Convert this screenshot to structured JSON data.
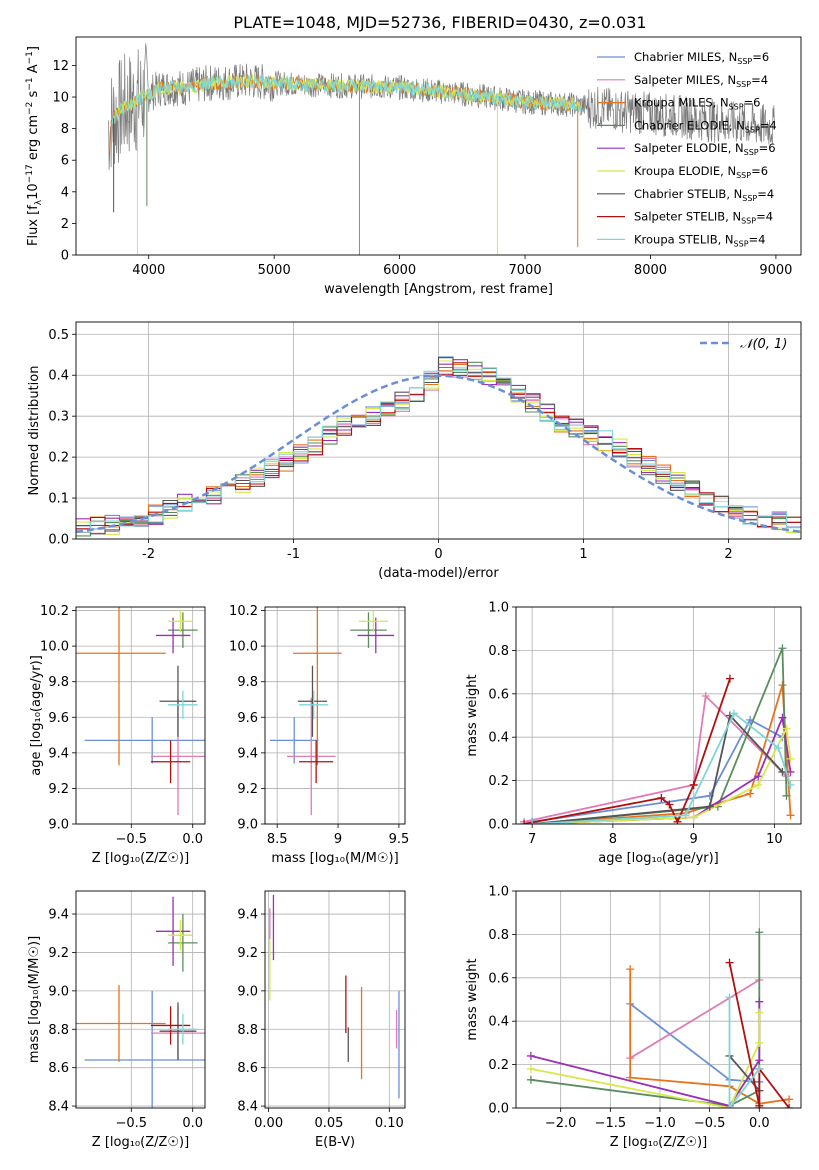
{
  "figure_title": "PLATE=1048, MJD=52736, FIBERID=0430, z=0.031",
  "colors": {
    "c0": "#6a8fd6",
    "c1": "#e07bb4",
    "c2": "#e8731c",
    "c3": "#5b8c5e",
    "c4": "#9b30b5",
    "c5": "#d6e84a",
    "c6": "#555555",
    "c7": "#b01010",
    "c8": "#7fd6d8",
    "grid": "#b0b0b0"
  },
  "chart_data": [
    {
      "type": "line",
      "id": "spectrum",
      "title": "",
      "xlabel": "wavelength [Angstrom, rest frame]",
      "ylabel_text": "Flux [f",
      "ylabel_sub": "λ",
      "ylabel_text2": "10",
      "ylabel_sup": "−17",
      "ylabel_text3": " erg cm",
      "ylabel_sup2": "−2",
      "ylabel_text4": " s",
      "ylabel_sup3": "−1",
      "ylabel_text5": " A",
      "ylabel_sup4": "−1",
      "ylabel_text6": "]",
      "xlim": [
        3420,
        9200
      ],
      "ylim": [
        0,
        13.8
      ],
      "xticks": [
        4000,
        5000,
        6000,
        7000,
        8000,
        9000
      ],
      "yticks": [
        0,
        2,
        4,
        6,
        8,
        10,
        12
      ],
      "legend_position": "top-right",
      "legend": [
        {
          "label": "Chabrier MILES, N",
          "sub": "SSP",
          "tail": "=6",
          "color": "#6a8fd6"
        },
        {
          "label": "Salpeter MILES, N",
          "sub": "SSP",
          "tail": "=4",
          "color": "#e07bb4"
        },
        {
          "label": "Kroupa MILES, N",
          "sub": "SSP",
          "tail": "=6",
          "color": "#e8731c"
        },
        {
          "label": "Chabrier ELODIE, N",
          "sub": "SSP",
          "tail": "=4",
          "color": "#5b8c5e"
        },
        {
          "label": "Salpeter ELODIE, N",
          "sub": "SSP",
          "tail": "=6",
          "color": "#9b30b5"
        },
        {
          "label": "Kroupa ELODIE, N",
          "sub": "SSP",
          "tail": "=6",
          "color": "#d6e84a"
        },
        {
          "label": "Chabrier STELIB, N",
          "sub": "SSP",
          "tail": "=4",
          "color": "#555555"
        },
        {
          "label": "Salpeter STELIB, N",
          "sub": "SSP",
          "tail": "=4",
          "color": "#b01010"
        },
        {
          "label": "Kroupa STELIB, N",
          "sub": "SSP",
          "tail": "=4",
          "color": "#7fd6d8"
        }
      ],
      "continuum": [
        [
          3700,
          8.5
        ],
        [
          3800,
          9.3
        ],
        [
          3950,
          10.0
        ],
        [
          4100,
          10.6
        ],
        [
          4300,
          10.6
        ],
        [
          4500,
          10.9
        ],
        [
          4800,
          11.0
        ],
        [
          5200,
          10.8
        ],
        [
          5600,
          10.7
        ],
        [
          6000,
          10.6
        ],
        [
          6500,
          10.2
        ],
        [
          7000,
          9.7
        ],
        [
          7400,
          9.5
        ],
        [
          7800,
          9.1
        ],
        [
          8200,
          8.8
        ],
        [
          8600,
          8.4
        ],
        [
          9000,
          8.1
        ]
      ],
      "model_range": [
        3700,
        7450
      ],
      "data_range": [
        3680,
        8990
      ],
      "dips": [
        {
          "x": 3700,
          "y": 6.5,
          "color": "#e8731c"
        },
        {
          "x": 3720,
          "y": 2.7,
          "color": "#555555"
        },
        {
          "x": 3910,
          "y": 0.0,
          "color": "#d6e84a"
        },
        {
          "x": 3985,
          "y": 3.1,
          "color": "#5b8c5e"
        },
        {
          "x": 5680,
          "y": 0.0,
          "color": "#e8731c"
        },
        {
          "x": 6780,
          "y": 0.0,
          "color": "#d6e84a"
        },
        {
          "x": 7420,
          "y": 0.5,
          "color": "#e8731c"
        }
      ]
    },
    {
      "type": "step",
      "id": "residual_hist",
      "title": "",
      "xlabel": "(data-model)/error",
      "ylabel": "Normed distribution",
      "xlim": [
        -2.5,
        2.5
      ],
      "ylim": [
        0,
        0.53
      ],
      "xticks": [
        -2,
        -1,
        0,
        1,
        2
      ],
      "yticks": [
        0.0,
        0.1,
        0.2,
        0.3,
        0.4,
        0.5
      ],
      "ytick_labels": [
        "0.0",
        "0.1",
        "0.2",
        "0.3",
        "0.4",
        "0.5"
      ],
      "legend_position": "top-right",
      "legend_label": "𝒩(0, 1)",
      "gaussian": {
        "mean": 0,
        "sigma": 1,
        "color": "#6a8fd6"
      },
      "bin_edges_start": -2.5,
      "bin_width": 0.1,
      "base_profile": [
        0.03,
        0.032,
        0.035,
        0.04,
        0.05,
        0.06,
        0.075,
        0.085,
        0.095,
        0.105,
        0.12,
        0.135,
        0.15,
        0.17,
        0.19,
        0.21,
        0.23,
        0.255,
        0.275,
        0.29,
        0.3,
        0.31,
        0.335,
        0.355,
        0.385,
        0.42,
        0.415,
        0.41,
        0.395,
        0.38,
        0.355,
        0.335,
        0.305,
        0.285,
        0.27,
        0.255,
        0.24,
        0.22,
        0.2,
        0.18,
        0.16,
        0.14,
        0.12,
        0.1,
        0.085,
        0.075,
        0.06,
        0.05,
        0.045,
        0.04
      ],
      "series_offsets": [
        {
          "name": "",
          "color": "#6a8fd6",
          "seed": 1
        },
        {
          "name": "",
          "color": "#e07bb4",
          "seed": 2
        },
        {
          "name": "",
          "color": "#e8731c",
          "seed": 3
        },
        {
          "name": "",
          "color": "#5b8c5e",
          "seed": 4
        },
        {
          "name": "",
          "color": "#9b30b5",
          "seed": 5
        },
        {
          "name": "",
          "color": "#d6e84a",
          "seed": 6
        },
        {
          "name": "",
          "color": "#555555",
          "seed": 7
        },
        {
          "name": "",
          "color": "#b01010",
          "seed": 8
        },
        {
          "name": "",
          "color": "#7fd6d8",
          "seed": 9
        }
      ]
    },
    {
      "type": "scatter",
      "id": "age_vs_Z",
      "xlabel": "Z [log₁₀(Z/Z☉)]",
      "ylabel": "age  [log₁₀(age/yr)]",
      "xlim": [
        -0.95,
        0.1
      ],
      "ylim": [
        9.0,
        10.22
      ],
      "xticks": [
        -0.5,
        0.0
      ],
      "xtick_labels": [
        "−0.5",
        "0.0"
      ],
      "yticks": [
        9.0,
        9.2,
        9.4,
        9.6,
        9.8,
        10.0,
        10.2
      ],
      "points": [
        {
          "x": -0.33,
          "y": 9.47,
          "xerr": 0.55,
          "yerr": 0.13,
          "color": "#6a8fd6"
        },
        {
          "x": -0.12,
          "y": 9.38,
          "xerr": 0.22,
          "yerr": 0.33,
          "color": "#e07bb4"
        },
        {
          "x": -0.6,
          "y": 9.96,
          "xerr": 0.38,
          "yerr": 0.63,
          "color": "#e8731c"
        },
        {
          "x": -0.08,
          "y": 10.09,
          "xerr": 0.12,
          "yerr": 0.1,
          "color": "#5b8c5e"
        },
        {
          "x": -0.16,
          "y": 10.06,
          "xerr": 0.14,
          "yerr": 0.1,
          "color": "#9b30b5"
        },
        {
          "x": -0.1,
          "y": 10.14,
          "xerr": 0.1,
          "yerr": 0.06,
          "color": "#d6e84a"
        },
        {
          "x": -0.12,
          "y": 9.69,
          "xerr": 0.15,
          "yerr": 0.2,
          "color": "#555555"
        },
        {
          "x": -0.18,
          "y": 9.35,
          "xerr": 0.16,
          "yerr": 0.12,
          "color": "#b01010"
        },
        {
          "x": -0.08,
          "y": 9.67,
          "xerr": 0.12,
          "yerr": 0.08,
          "color": "#7fd6d8"
        }
      ]
    },
    {
      "type": "scatter",
      "id": "age_vs_mass",
      "xlabel": "mass [log₁₀(M/M☉)]",
      "ylabel": "",
      "xlim": [
        8.4,
        9.55
      ],
      "ylim": [
        9.0,
        10.22
      ],
      "xticks": [
        8.5,
        9.0,
        9.5
      ],
      "yticks": [
        9.0,
        9.2,
        9.4,
        9.6,
        9.8,
        10.0,
        10.2
      ],
      "points": [
        {
          "x": 8.64,
          "y": 9.47,
          "xerr": 0.2,
          "yerr": 0.13,
          "color": "#6a8fd6"
        },
        {
          "x": 8.78,
          "y": 9.38,
          "xerr": 0.2,
          "yerr": 0.33,
          "color": "#e07bb4"
        },
        {
          "x": 8.83,
          "y": 9.96,
          "xerr": 0.2,
          "yerr": 0.63,
          "color": "#e8731c"
        },
        {
          "x": 9.25,
          "y": 10.09,
          "xerr": 0.15,
          "yerr": 0.1,
          "color": "#5b8c5e"
        },
        {
          "x": 9.31,
          "y": 10.06,
          "xerr": 0.15,
          "yerr": 0.1,
          "color": "#9b30b5"
        },
        {
          "x": 9.29,
          "y": 10.14,
          "xerr": 0.12,
          "yerr": 0.06,
          "color": "#d6e84a"
        },
        {
          "x": 8.79,
          "y": 9.69,
          "xerr": 0.12,
          "yerr": 0.2,
          "color": "#555555"
        },
        {
          "x": 8.82,
          "y": 9.35,
          "xerr": 0.14,
          "yerr": 0.12,
          "color": "#b01010"
        },
        {
          "x": 8.8,
          "y": 9.67,
          "xerr": 0.12,
          "yerr": 0.08,
          "color": "#7fd6d8"
        }
      ]
    },
    {
      "type": "line",
      "id": "massweight_vs_age",
      "xlabel": "age  [log₁₀(age/yr)]",
      "ylabel": "mass weight",
      "xlim": [
        6.8,
        10.33
      ],
      "ylim": [
        0.0,
        1.0
      ],
      "xticks": [
        7,
        8,
        9,
        10
      ],
      "yticks": [
        0.0,
        0.2,
        0.4,
        0.6,
        0.8,
        1.0
      ],
      "series": [
        {
          "name": "",
          "color": "#6a8fd6",
          "x": [
            7.0,
            9.2,
            9.7,
            10.1
          ],
          "y": [
            0.01,
            0.13,
            0.48,
            0.4
          ]
        },
        {
          "name": "",
          "color": "#e07bb4",
          "x": [
            6.9,
            9.0,
            9.15,
            10.15
          ],
          "y": [
            0.01,
            0.18,
            0.59,
            0.22
          ]
        },
        {
          "name": "",
          "color": "#e8731c",
          "x": [
            7.0,
            8.9,
            9.7,
            10.1,
            10.2
          ],
          "y": [
            0.0,
            0.05,
            0.14,
            0.64,
            0.04
          ]
        },
        {
          "name": "",
          "color": "#5b8c5e",
          "x": [
            7.0,
            9.3,
            10.1,
            10.15
          ],
          "y": [
            0.0,
            0.08,
            0.81,
            0.13
          ]
        },
        {
          "name": "",
          "color": "#9b30b5",
          "x": [
            7.0,
            9.0,
            9.8,
            10.1,
            10.2
          ],
          "y": [
            0.0,
            0.03,
            0.22,
            0.49,
            0.24
          ]
        },
        {
          "name": "",
          "color": "#d6e84a",
          "x": [
            7.0,
            9.0,
            9.8,
            10.15,
            10.2
          ],
          "y": [
            0.0,
            0.03,
            0.18,
            0.44,
            0.3
          ]
        },
        {
          "name": "",
          "color": "#555555",
          "x": [
            7.0,
            9.2,
            9.45,
            10.1
          ],
          "y": [
            0.0,
            0.08,
            0.5,
            0.24
          ]
        },
        {
          "name": "",
          "color": "#b01010",
          "x": [
            6.9,
            8.6,
            8.7,
            8.8,
            9.0,
            9.45
          ],
          "y": [
            0.0,
            0.12,
            0.09,
            0.01,
            0.18,
            0.67
          ]
        },
        {
          "name": "",
          "color": "#7fd6d8",
          "x": [
            7.0,
            8.9,
            9.5,
            10.05,
            10.2
          ],
          "y": [
            0.0,
            0.04,
            0.51,
            0.35,
            0.18
          ]
        }
      ]
    },
    {
      "type": "scatter",
      "id": "mass_vs_Z",
      "xlabel": "Z [log₁₀(Z/Z☉)]",
      "ylabel": "mass [log₁₀(M/M☉)]",
      "xlim": [
        -0.95,
        0.1
      ],
      "ylim": [
        8.39,
        9.52
      ],
      "xticks": [
        -0.5,
        0.0
      ],
      "xtick_labels": [
        "−0.5",
        "0.0"
      ],
      "yticks": [
        8.4,
        8.6,
        8.8,
        9.0,
        9.2,
        9.4
      ],
      "points": [
        {
          "x": -0.33,
          "y": 8.64,
          "xerr": 0.55,
          "yerr": 0.36,
          "color": "#6a8fd6"
        },
        {
          "x": -0.12,
          "y": 8.78,
          "xerr": 0.22,
          "yerr": 0.14,
          "color": "#e07bb4"
        },
        {
          "x": -0.6,
          "y": 8.83,
          "xerr": 0.38,
          "yerr": 0.2,
          "color": "#e8731c"
        },
        {
          "x": -0.08,
          "y": 9.25,
          "xerr": 0.12,
          "yerr": 0.15,
          "color": "#5b8c5e"
        },
        {
          "x": -0.16,
          "y": 9.31,
          "xerr": 0.14,
          "yerr": 0.18,
          "color": "#9b30b5"
        },
        {
          "x": -0.1,
          "y": 9.29,
          "xerr": 0.1,
          "yerr": 0.08,
          "color": "#d6e84a"
        },
        {
          "x": -0.12,
          "y": 8.79,
          "xerr": 0.15,
          "yerr": 0.15,
          "color": "#555555"
        },
        {
          "x": -0.18,
          "y": 8.82,
          "xerr": 0.16,
          "yerr": 0.1,
          "color": "#b01010"
        },
        {
          "x": -0.08,
          "y": 8.8,
          "xerr": 0.12,
          "yerr": 0.08,
          "color": "#7fd6d8"
        }
      ]
    },
    {
      "type": "scatter",
      "id": "mass_vs_ebv",
      "xlabel": "E(B-V)",
      "ylabel": "",
      "xlim": [
        -0.003,
        0.113
      ],
      "ylim": [
        8.39,
        9.52
      ],
      "xticks": [
        0.0,
        0.05,
        0.1
      ],
      "xtick_labels": [
        "0.00",
        "0.05",
        "0.10"
      ],
      "yticks": [
        8.4,
        8.6,
        8.8,
        9.0,
        9.2,
        9.4
      ],
      "points": [
        {
          "x": 0.108,
          "y": 8.72,
          "xerr": 0,
          "yerr": 0.28,
          "color": "#6a8fd6"
        },
        {
          "x": 0.077,
          "y": 8.78,
          "xerr": 0,
          "yerr": 0.24,
          "color": "#e8731c"
        },
        {
          "x": 0.066,
          "y": 8.72,
          "xerr": 0,
          "yerr": 0.09,
          "color": "#555555"
        },
        {
          "x": 0.064,
          "y": 8.93,
          "xerr": 0,
          "yerr": 0.15,
          "color": "#b01010"
        },
        {
          "x": 0.001,
          "y": 9.15,
          "xerr": 0,
          "yerr": 0.2,
          "color": "#d6e84a"
        },
        {
          "x": 0.004,
          "y": 9.33,
          "xerr": 0,
          "yerr": 0.17,
          "color": "#9b30b5"
        },
        {
          "x": 0.001,
          "y": 9.35,
          "xerr": 0,
          "yerr": 0.08,
          "color": "#e07bb4"
        },
        {
          "x": 0.106,
          "y": 8.8,
          "xerr": 0,
          "yerr": 0.1,
          "color": "#e07bb4"
        }
      ]
    },
    {
      "type": "line",
      "id": "massweight_vs_Z",
      "xlabel": "Z [log₁₀(Z/Z☉)]",
      "ylabel": "mass weight",
      "xlim": [
        -2.45,
        0.42
      ],
      "ylim": [
        0.0,
        1.0
      ],
      "xticks": [
        -2.0,
        -1.5,
        -1.0,
        -0.5,
        0.0
      ],
      "xtick_labels": [
        "−2.0",
        "−1.5",
        "−1.0",
        "−0.5",
        "0.0"
      ],
      "yticks": [
        0.0,
        0.2,
        0.4,
        0.6,
        0.8,
        1.0
      ],
      "series": [
        {
          "name": "",
          "color": "#6a8fd6",
          "x": [
            -1.3,
            -0.3,
            0.0,
            0.0
          ],
          "y": [
            0.48,
            0.13,
            0.12,
            0.0
          ]
        },
        {
          "name": "",
          "color": "#e07bb4",
          "x": [
            -1.3,
            0.0
          ],
          "y": [
            0.23,
            0.59
          ]
        },
        {
          "name": "",
          "color": "#e8731c",
          "x": [
            -1.3,
            -1.3,
            -0.3,
            0.0,
            0.3
          ],
          "y": [
            0.64,
            0.14,
            0.1,
            0.02,
            0.04
          ]
        },
        {
          "name": "",
          "color": "#5b8c5e",
          "x": [
            -2.3,
            -0.3,
            0.0,
            0.0
          ],
          "y": [
            0.13,
            0.01,
            0.08,
            0.81
          ]
        },
        {
          "name": "",
          "color": "#9b30b5",
          "x": [
            -2.3,
            -0.3,
            0.0,
            0.0
          ],
          "y": [
            0.24,
            0.01,
            0.22,
            0.49
          ]
        },
        {
          "name": "",
          "color": "#d6e84a",
          "x": [
            -2.3,
            -0.3,
            0.0,
            0.0
          ],
          "y": [
            0.18,
            0.0,
            0.3,
            0.44
          ]
        },
        {
          "name": "",
          "color": "#555555",
          "x": [
            -0.3,
            0.0,
            0.0
          ],
          "y": [
            0.24,
            0.08,
            0.0
          ]
        },
        {
          "name": "",
          "color": "#b01010",
          "x": [
            -0.3,
            0.0,
            0.0,
            0.3
          ],
          "y": [
            0.67,
            0.01,
            0.18,
            0.0
          ]
        },
        {
          "name": "",
          "color": "#7fd6d8",
          "x": [
            -0.3,
            -0.3,
            0.0
          ],
          "y": [
            0.51,
            0.0,
            0.18
          ]
        }
      ]
    }
  ]
}
